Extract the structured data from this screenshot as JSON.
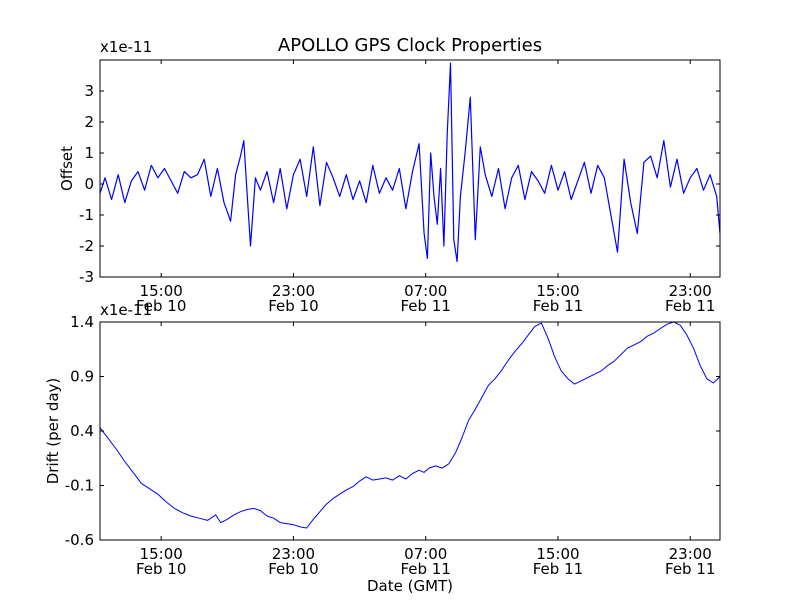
{
  "chart_data": [
    {
      "type": "line",
      "title": "APOLLO GPS Clock Properties",
      "scale_label": "x1e-11",
      "ylabel": "Offset",
      "xlabel": "",
      "x_range_hours": [
        11.3,
        48.8
      ],
      "ylim": [
        -3,
        4
      ],
      "yticks": [
        -3,
        -2,
        -1,
        0,
        1,
        2,
        3
      ],
      "ytick_labels": [
        "-3",
        "-2",
        "-1",
        "0",
        "1",
        "2",
        "3"
      ],
      "xticks_hours": [
        15,
        23,
        31,
        39,
        47
      ],
      "xtick_labels": [
        [
          "15:00",
          "Feb 10"
        ],
        [
          "23:00",
          "Feb 10"
        ],
        [
          "07:00",
          "Feb 11"
        ],
        [
          "15:00",
          "Feb 11"
        ],
        [
          "23:00",
          "Feb 11"
        ]
      ],
      "color": "#0000ff",
      "series": [
        {
          "name": "Offset",
          "x": [
            11.3,
            11.6,
            12.0,
            12.4,
            12.8,
            13.2,
            13.6,
            14.0,
            14.4,
            14.8,
            15.2,
            15.6,
            16.0,
            16.4,
            16.8,
            17.2,
            17.6,
            18.0,
            18.4,
            18.8,
            19.2,
            19.5,
            19.8,
            20.0,
            20.2,
            20.4,
            20.7,
            21.0,
            21.4,
            21.8,
            22.2,
            22.6,
            23.0,
            23.4,
            23.8,
            24.2,
            24.6,
            25.0,
            25.4,
            25.8,
            26.2,
            26.6,
            27.0,
            27.4,
            27.8,
            28.2,
            28.6,
            29.0,
            29.4,
            29.8,
            30.2,
            30.6,
            30.9,
            31.1,
            31.3,
            31.5,
            31.7,
            31.9,
            32.1,
            32.3,
            32.5,
            32.7,
            32.9,
            33.1,
            33.4,
            33.7,
            34.0,
            34.3,
            34.6,
            35.0,
            35.4,
            35.8,
            36.2,
            36.6,
            37.0,
            37.4,
            37.8,
            38.2,
            38.6,
            39.0,
            39.4,
            39.8,
            40.2,
            40.6,
            41.0,
            41.4,
            41.8,
            42.2,
            42.6,
            43.0,
            43.4,
            43.8,
            44.2,
            44.6,
            45.0,
            45.4,
            45.8,
            46.2,
            46.6,
            47.0,
            47.4,
            47.8,
            48.2,
            48.6,
            48.8
          ],
          "y": [
            -0.3,
            0.2,
            -0.5,
            0.3,
            -0.6,
            0.1,
            0.4,
            -0.2,
            0.6,
            0.2,
            0.5,
            0.1,
            -0.3,
            0.4,
            0.2,
            0.3,
            0.8,
            -0.4,
            0.5,
            -0.6,
            -1.2,
            0.3,
            0.9,
            1.4,
            -0.3,
            -2.0,
            0.2,
            -0.2,
            0.4,
            -0.6,
            0.5,
            -0.8,
            0.3,
            0.8,
            -0.4,
            1.2,
            -0.7,
            0.7,
            0.2,
            -0.4,
            0.3,
            -0.5,
            0.1,
            -0.6,
            0.6,
            -0.3,
            0.2,
            -0.2,
            0.5,
            -0.8,
            0.4,
            1.3,
            -1.6,
            -2.4,
            1.0,
            -0.4,
            -1.3,
            0.5,
            -2.0,
            1.6,
            3.9,
            -1.8,
            -2.5,
            -0.4,
            1.1,
            2.8,
            -1.8,
            1.2,
            0.3,
            -0.4,
            0.5,
            -0.8,
            0.2,
            0.6,
            -0.5,
            0.4,
            0.1,
            -0.3,
            0.6,
            -0.2,
            0.4,
            -0.5,
            0.1,
            0.7,
            -0.3,
            0.6,
            0.2,
            -1.0,
            -2.2,
            0.8,
            -0.6,
            -1.6,
            0.7,
            0.9,
            0.2,
            1.4,
            -0.1,
            0.8,
            -0.3,
            0.2,
            0.5,
            -0.2,
            0.3,
            -0.4,
            -1.6
          ]
        }
      ]
    },
    {
      "type": "line",
      "title": "",
      "scale_label": "x1e-11",
      "ylabel": "Drift (per day)",
      "xlabel": "Date (GMT)",
      "x_range_hours": [
        11.3,
        48.8
      ],
      "ylim": [
        -0.6,
        1.4
      ],
      "yticks": [
        -0.6,
        -0.1,
        0.4,
        0.9,
        1.4
      ],
      "ytick_labels": [
        "-0.6",
        "-0.1",
        "0.4",
        "0.9",
        "1.4"
      ],
      "xticks_hours": [
        15,
        23,
        31,
        39,
        47
      ],
      "xtick_labels": [
        [
          "15:00",
          "Feb 10"
        ],
        [
          "23:00",
          "Feb 10"
        ],
        [
          "07:00",
          "Feb 11"
        ],
        [
          "15:00",
          "Feb 11"
        ],
        [
          "23:00",
          "Feb 11"
        ]
      ],
      "color": "#0000ff",
      "series": [
        {
          "name": "Drift",
          "x": [
            11.3,
            11.8,
            12.3,
            12.8,
            13.3,
            13.8,
            14.3,
            14.8,
            15.3,
            15.8,
            16.3,
            16.8,
            17.3,
            17.8,
            18.3,
            18.6,
            19.0,
            19.4,
            19.8,
            20.2,
            20.6,
            21.0,
            21.4,
            21.8,
            22.2,
            22.6,
            23.0,
            23.4,
            23.8,
            24.2,
            24.6,
            25.0,
            25.4,
            25.8,
            26.2,
            26.6,
            27.0,
            27.4,
            27.8,
            28.2,
            28.6,
            29.0,
            29.4,
            29.8,
            30.2,
            30.6,
            30.9,
            31.2,
            31.6,
            32.0,
            32.4,
            32.8,
            33.2,
            33.6,
            34.0,
            34.4,
            34.8,
            35.2,
            35.6,
            36.0,
            36.4,
            36.8,
            37.2,
            37.6,
            38.0,
            38.4,
            38.8,
            39.2,
            39.6,
            40.0,
            40.4,
            40.8,
            41.2,
            41.6,
            42.0,
            42.4,
            42.8,
            43.2,
            43.6,
            44.0,
            44.4,
            44.8,
            45.2,
            45.6,
            46.0,
            46.4,
            46.8,
            47.2,
            47.6,
            48.0,
            48.4,
            48.8
          ],
          "y": [
            0.43,
            0.33,
            0.23,
            0.12,
            0.02,
            -0.08,
            -0.13,
            -0.18,
            -0.25,
            -0.31,
            -0.35,
            -0.38,
            -0.4,
            -0.42,
            -0.37,
            -0.44,
            -0.41,
            -0.37,
            -0.34,
            -0.32,
            -0.31,
            -0.33,
            -0.38,
            -0.4,
            -0.44,
            -0.45,
            -0.46,
            -0.48,
            -0.49,
            -0.41,
            -0.34,
            -0.27,
            -0.22,
            -0.18,
            -0.14,
            -0.11,
            -0.06,
            -0.02,
            -0.05,
            -0.04,
            -0.03,
            -0.05,
            -0.01,
            -0.04,
            0.01,
            0.04,
            0.02,
            0.06,
            0.08,
            0.06,
            0.1,
            0.2,
            0.34,
            0.5,
            0.6,
            0.71,
            0.82,
            0.88,
            0.96,
            1.05,
            1.13,
            1.2,
            1.28,
            1.36,
            1.39,
            1.25,
            1.08,
            0.95,
            0.88,
            0.83,
            0.86,
            0.89,
            0.92,
            0.95,
            1.0,
            1.04,
            1.1,
            1.16,
            1.19,
            1.22,
            1.27,
            1.3,
            1.34,
            1.38,
            1.4,
            1.37,
            1.28,
            1.16,
            1.0,
            0.88,
            0.84,
            0.9
          ]
        }
      ]
    }
  ]
}
